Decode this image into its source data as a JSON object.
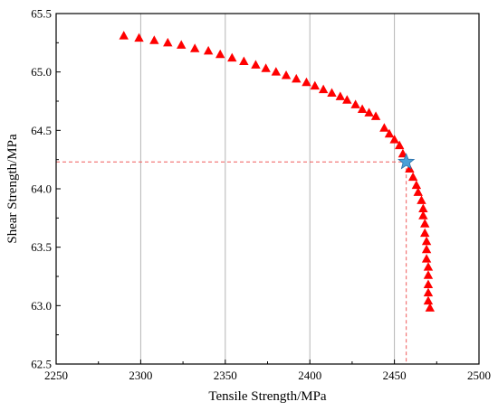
{
  "chart_data": {
    "type": "scatter",
    "title": "",
    "xlabel": "Tensile Strength/MPa",
    "ylabel": "Shear Strength/MPa",
    "xlim": [
      2250,
      2500
    ],
    "ylim": [
      62.5,
      65.5
    ],
    "x_ticks": [
      "2250",
      "2300",
      "2350",
      "2400",
      "2450",
      "2500"
    ],
    "y_ticks": [
      "62.5",
      "63.0",
      "63.5",
      "64.0",
      "64.5",
      "65.0",
      "65.5"
    ],
    "grid": "vertical",
    "series": [
      {
        "marker": "triangle",
        "color": "#ff0000",
        "points": [
          [
            2290,
            65.31
          ],
          [
            2299,
            65.29
          ],
          [
            2308,
            65.27
          ],
          [
            2316,
            65.25
          ],
          [
            2324,
            65.23
          ],
          [
            2332,
            65.2
          ],
          [
            2340,
            65.18
          ],
          [
            2347,
            65.15
          ],
          [
            2354,
            65.12
          ],
          [
            2361,
            65.09
          ],
          [
            2368,
            65.06
          ],
          [
            2374,
            65.03
          ],
          [
            2380,
            65.0
          ],
          [
            2386,
            64.97
          ],
          [
            2392,
            64.94
          ],
          [
            2398,
            64.91
          ],
          [
            2403,
            64.88
          ],
          [
            2408,
            64.85
          ],
          [
            2413,
            64.82
          ],
          [
            2418,
            64.79
          ],
          [
            2422,
            64.76
          ],
          [
            2427,
            64.72
          ],
          [
            2431,
            64.68
          ],
          [
            2435,
            64.65
          ],
          [
            2439,
            64.62
          ],
          [
            2444,
            64.52
          ],
          [
            2447,
            64.47
          ],
          [
            2450,
            64.42
          ],
          [
            2453,
            64.37
          ],
          [
            2455,
            64.3
          ],
          [
            2459,
            64.17
          ],
          [
            2461,
            64.1
          ],
          [
            2463,
            64.03
          ],
          [
            2464,
            63.97
          ],
          [
            2466,
            63.9
          ],
          [
            2467,
            63.83
          ],
          [
            2467,
            63.77
          ],
          [
            2468,
            63.7
          ],
          [
            2468,
            63.62
          ],
          [
            2469,
            63.55
          ],
          [
            2469,
            63.48
          ],
          [
            2469,
            63.4
          ],
          [
            2470,
            63.33
          ],
          [
            2470,
            63.26
          ],
          [
            2470,
            63.18
          ],
          [
            2470,
            63.11
          ],
          [
            2470,
            63.04
          ],
          [
            2471,
            62.98
          ]
        ]
      }
    ],
    "highlight": {
      "x": 2457,
      "y": 64.23,
      "marker": "star",
      "color": "#4aa0d8",
      "guide_color": "#f05a5a"
    }
  }
}
